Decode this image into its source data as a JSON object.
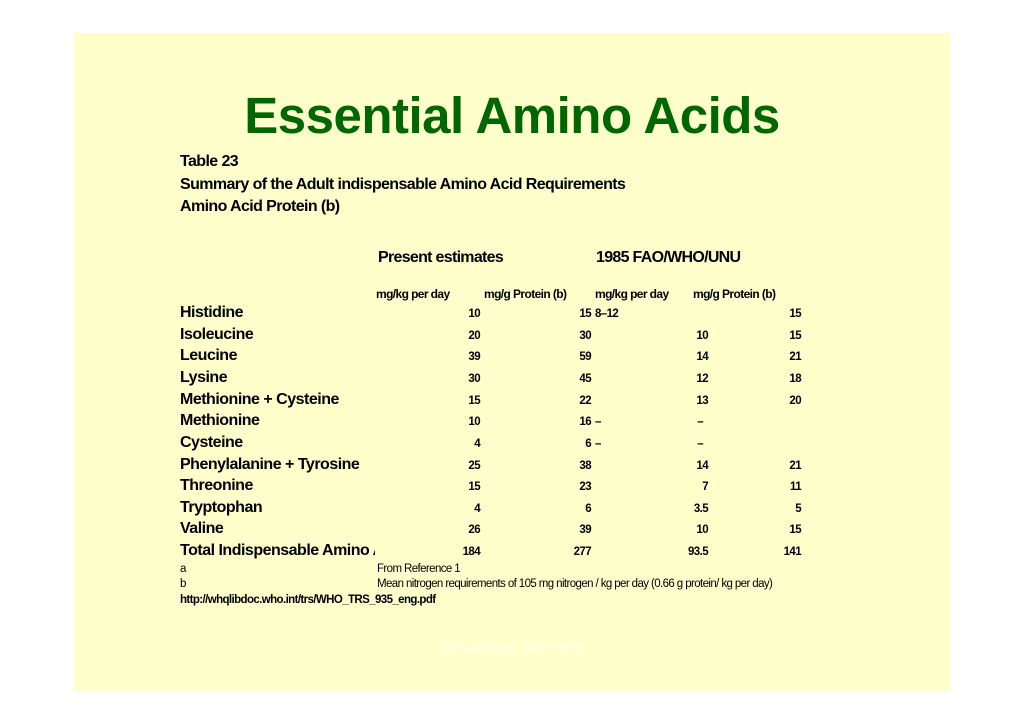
{
  "slide": {
    "title": "Essential Amino Acids",
    "footer": "Gil Mathews, MD, MPH",
    "background_color": "#ffffcc",
    "title_color": "#006600"
  },
  "table": {
    "caption": [
      "Table 23",
      "Summary of the Adult indispensable Amino Acid Requirements",
      "Amino Acid Protein (b)"
    ],
    "group_headers": [
      "Present estimates",
      "1985 FAO/WHO/UNU"
    ],
    "column_headers": [
      "mg/kg per day",
      "mg/g Protein (b)",
      "mg/kg per day",
      "mg/g Protein (b)"
    ],
    "rows": [
      {
        "name": "Histidine",
        "c1": "10",
        "c2": "15",
        "note": "8–12",
        "c3": "",
        "c4": "15"
      },
      {
        "name": "Isoleucine",
        "c1": "20",
        "c2": "30",
        "note": "",
        "c3": "10",
        "c4": "15"
      },
      {
        "name": "Leucine",
        "c1": "39",
        "c2": "59",
        "note": "",
        "c3": "14",
        "c4": "21"
      },
      {
        "name": "Lysine",
        "c1": "30",
        "c2": "45",
        "note": "",
        "c3": "12",
        "c4": "18"
      },
      {
        "name": "Methionine + Cysteine",
        "c1": "15",
        "c2": "22",
        "note": "",
        "c3": "13",
        "c4": "20"
      },
      {
        "name": "Methionine",
        "c1": "10",
        "c2": "16",
        "note": "–",
        "c3": "–",
        "c4": ""
      },
      {
        "name": "Cysteine",
        "c1": "4",
        "c2": "6",
        "note": "–",
        "c3": "–",
        "c4": ""
      },
      {
        "name": "Phenylalanine + Tyrosine",
        "c1": "25",
        "c2": "38",
        "note": "",
        "c3": "14",
        "c4": "21"
      },
      {
        "name": "Threonine",
        "c1": "15",
        "c2": "23",
        "note": "",
        "c3": "7",
        "c4": "11"
      },
      {
        "name": "Tryptophan",
        "c1": "4",
        "c2": "6",
        "note": "",
        "c3": "3.5",
        "c4": "5"
      },
      {
        "name": "Valine",
        "c1": "26",
        "c2": "39",
        "note": "",
        "c3": "10",
        "c4": "15"
      },
      {
        "name": "Total Indispensable Amino Acids",
        "c1": "184",
        "c2": "277",
        "note": "",
        "c3": "93.5",
        "c4": "141"
      }
    ],
    "footnotes": [
      {
        "mark": "a",
        "text": "From Reference 1"
      },
      {
        "mark": "b",
        "text": "Mean nitrogen requirements of 105 mg nitrogen / kg per day (0.66 g protein/ kg per day)"
      }
    ],
    "source_url": "http://whqlibdoc.who.int/trs/WHO_TRS_935_eng.pdf"
  }
}
